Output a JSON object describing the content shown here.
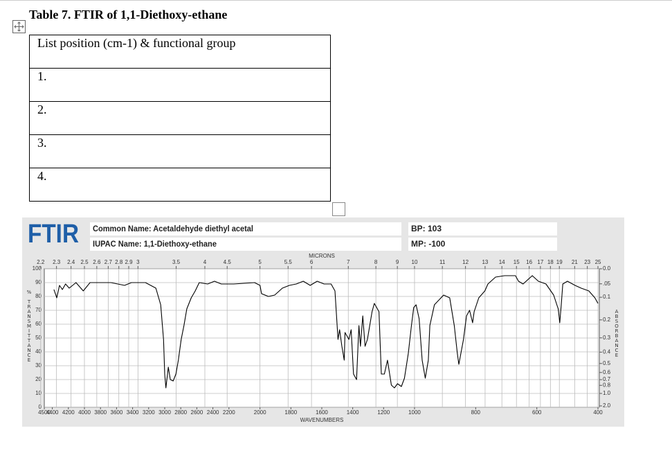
{
  "header": {
    "title": "Table 7. FTIR of 1,1-Diethoxy-ethane"
  },
  "table": {
    "rows": [
      [
        "List position (cm-1) & functional group"
      ],
      [
        "1."
      ],
      [
        "2."
      ],
      [
        "3."
      ],
      [
        "4."
      ]
    ]
  },
  "chart_data": {
    "type": "line",
    "title": "FTIR",
    "common_name": "Common Name: Acetaldehyde diethyl acetal",
    "iupac_name": "IUPAC Name: 1,1-Diethoxy-ethane",
    "bp": "BP: 103",
    "mp": "MP: -100",
    "x_label": "WAVENUMBERS",
    "x2_label": "MICRONS",
    "y_label": "% TRANSMITTANCE",
    "y2_label": "ABSORBANCE",
    "color": "#000000",
    "grid": true,
    "xlim": [
      4500,
      400
    ],
    "xticks": [
      4500,
      4400,
      4200,
      4000,
      3800,
      3600,
      3400,
      3200,
      3000,
      2800,
      2600,
      2400,
      2200,
      2000,
      1800,
      1600,
      1400,
      1200,
      1000,
      800,
      600,
      400
    ],
    "x2ticks": [
      2.2,
      2.3,
      2.4,
      2.5,
      2.6,
      2.7,
      2.8,
      2.9,
      3,
      3.5,
      4,
      4.5,
      5,
      5.5,
      6,
      7,
      8,
      9,
      10,
      11,
      12,
      13,
      14,
      15,
      16,
      17,
      18,
      19,
      21,
      23,
      25
    ],
    "ylim": [
      0,
      100
    ],
    "yticks": [
      0,
      10,
      20,
      30,
      40,
      50,
      60,
      70,
      80,
      90,
      100
    ],
    "y2ticks": [
      {
        "value": 0,
        "label": "0.0"
      },
      {
        "value": 0.05,
        "label": ".05"
      },
      0.1,
      0.2,
      0.3,
      0.4,
      0.5,
      0.6,
      0.7,
      0.8,
      {
        "value": 1,
        "label": "1.0"
      },
      {
        "value": 2,
        "label": "2.0"
      }
    ],
    "x": [
      4380,
      4345,
      4310,
      4275,
      4235,
      4190,
      4105,
      4015,
      3930,
      3845,
      3670,
      3500,
      3415,
      3240,
      3110,
      3050,
      3015,
      3000,
      2985,
      2955,
      2930,
      2895,
      2860,
      2830,
      2795,
      2760,
      2725,
      2670,
      2620,
      2570,
      2465,
      2380,
      2295,
      2170,
      2035,
      2000,
      1990,
      1945,
      1905,
      1875,
      1855,
      1810,
      1765,
      1720,
      1675,
      1630,
      1585,
      1540,
      1515,
      1495,
      1485,
      1470,
      1455,
      1450,
      1425,
      1410,
      1395,
      1375,
      1360,
      1350,
      1335,
      1320,
      1305,
      1275,
      1260,
      1230,
      1215,
      1195,
      1175,
      1150,
      1130,
      1110,
      1085,
      1065,
      1040,
      1020,
      1005,
      995,
      985,
      975,
      965,
      955,
      950,
      935,
      905,
      885,
      870,
      860,
      855,
      840,
      830,
      820,
      810,
      805,
      790,
      770,
      760,
      735,
      705,
      670,
      660,
      645,
      615,
      595,
      570,
      545,
      530,
      525,
      520,
      515,
      500,
      475,
      455,
      430,
      410,
      400
    ],
    "values": [
      85,
      79,
      88,
      85,
      89,
      86,
      90,
      84,
      90,
      90,
      90,
      88,
      90,
      90,
      86,
      74,
      49,
      24,
      14,
      29,
      20,
      19,
      24,
      34,
      49,
      59,
      71,
      79,
      84,
      90,
      89,
      91,
      89,
      89,
      90,
      88,
      82,
      80,
      81,
      84,
      86,
      88,
      89,
      91,
      88,
      91,
      89,
      89,
      84,
      49,
      56,
      44,
      34,
      54,
      49,
      56,
      24,
      20,
      59,
      44,
      66,
      44,
      49,
      69,
      75,
      69,
      24,
      24,
      34,
      16,
      14,
      17,
      15,
      21,
      39,
      59,
      72,
      74,
      64,
      34,
      21,
      34,
      59,
      74,
      81,
      79,
      59,
      39,
      31,
      49,
      66,
      70,
      61,
      69,
      79,
      84,
      89,
      94,
      95,
      95,
      91,
      89,
      95,
      91,
      89,
      81,
      71,
      61,
      74,
      89,
      91,
      88,
      86,
      84,
      79,
      75
    ]
  }
}
